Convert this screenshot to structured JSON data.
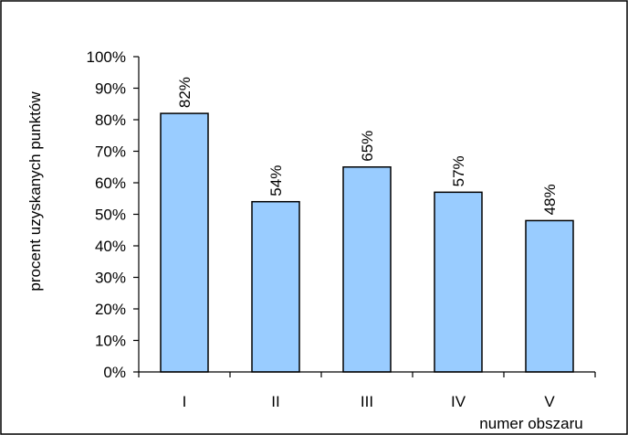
{
  "chart_data": {
    "type": "bar",
    "categories": [
      "I",
      "II",
      "III",
      "IV",
      "V"
    ],
    "values": [
      82,
      54,
      65,
      57,
      48
    ],
    "data_labels": [
      "82%",
      "54%",
      "65%",
      "57%",
      "48%"
    ],
    "title": "",
    "xlabel": "numer obszaru",
    "ylabel": "procent uzyskanych punktów",
    "ylim": [
      0,
      100
    ],
    "y_ticks": [
      {
        "value": 0,
        "label": "0%"
      },
      {
        "value": 10,
        "label": "10%"
      },
      {
        "value": 20,
        "label": "20%"
      },
      {
        "value": 30,
        "label": "30%"
      },
      {
        "value": 40,
        "label": "40%"
      },
      {
        "value": 50,
        "label": "50%"
      },
      {
        "value": 60,
        "label": "60%"
      },
      {
        "value": 70,
        "label": "70%"
      },
      {
        "value": 80,
        "label": "80%"
      },
      {
        "value": 90,
        "label": "90%"
      },
      {
        "value": 100,
        "label": "100%"
      }
    ],
    "grid": false,
    "legend": "none",
    "bar_color": "#99CCFF",
    "bar_edge_color": "#000000"
  }
}
